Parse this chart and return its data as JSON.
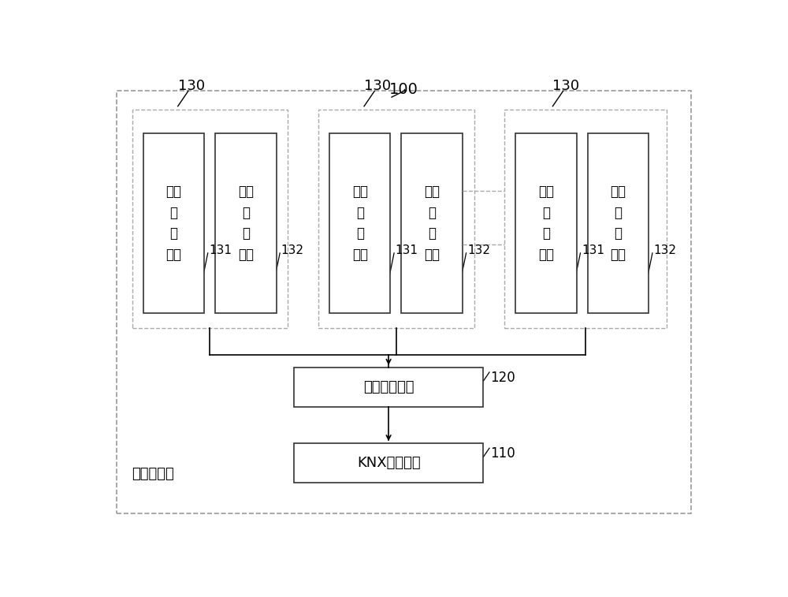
{
  "fig_width": 10.0,
  "fig_height": 7.57,
  "bg_color": "#ffffff",
  "title_label": "100",
  "bottom_label": "开关执行器",
  "groups": [
    {
      "id": 0,
      "label": "130",
      "label1": "开关\n控\n制\n单元",
      "label2": "电能\n检\n测\n单元",
      "num1": "131",
      "num2": "132"
    },
    {
      "id": 1,
      "label": "130",
      "label1": "开关\n控\n制\n单元",
      "label2": "电能\n检\n测\n单元",
      "num1": "131",
      "num2": "132"
    },
    {
      "id": 2,
      "label": "130",
      "label1": "开关\n控\n制\n单元",
      "label2": "电能\n检\n测\n单元",
      "num1": "131",
      "num2": "132"
    }
  ],
  "logic_label": "逻辑控制单元",
  "logic_num": "120",
  "knx_label": "KNX通信单元",
  "knx_num": "110",
  "dashed_line_color": "#aaaaaa",
  "box_edge_color": "#333333",
  "outer_box_color": "#999999"
}
